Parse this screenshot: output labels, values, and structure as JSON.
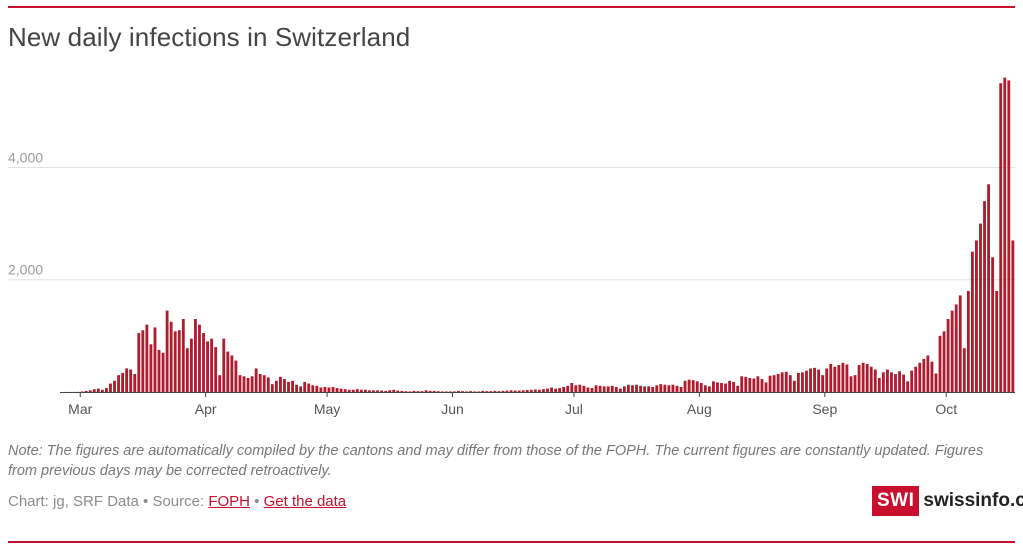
{
  "title": "New daily infections in Switzerland",
  "note": "Note: The figures are automatically compiled by the cantons and may differ from those of the FOPH. The current figures are constantly updated. Figures from previous days may be corrected retroactively.",
  "credits": {
    "prefix": "Chart: jg, SRF Data • Source: ",
    "source_link": "FOPH",
    "separator": " • ",
    "data_link": "Get the data"
  },
  "logo": {
    "badge": "SWI",
    "word": "swissinfo.ch"
  },
  "colors": {
    "bar": "#b01c2e",
    "accent": "#c8102e",
    "grid": "#e3e3e3"
  },
  "chart_data": {
    "type": "bar",
    "title": "New daily infections in Switzerland",
    "start_date": "2020-02-25",
    "ylim": [
      0,
      5700
    ],
    "yticks": [
      2000,
      4000
    ],
    "ytick_labels": [
      "2,000",
      "4,000"
    ],
    "xticks": [
      {
        "label": "Mar",
        "date": "2020-03-01"
      },
      {
        "label": "Apr",
        "date": "2020-04-01"
      },
      {
        "label": "May",
        "date": "2020-05-01"
      },
      {
        "label": "Jun",
        "date": "2020-06-01"
      },
      {
        "label": "Jul",
        "date": "2020-07-01"
      },
      {
        "label": "Aug",
        "date": "2020-08-01"
      },
      {
        "label": "Sep",
        "date": "2020-09-01"
      },
      {
        "label": "Oct",
        "date": "2020-10-01"
      }
    ],
    "grid": "horizontal",
    "values": [
      1,
      1,
      1,
      2,
      3,
      10,
      20,
      30,
      50,
      60,
      40,
      70,
      150,
      200,
      300,
      340,
      420,
      400,
      320,
      1050,
      1100,
      1200,
      850,
      1150,
      750,
      700,
      1450,
      1250,
      1080,
      1100,
      1300,
      780,
      950,
      1300,
      1200,
      1050,
      900,
      950,
      800,
      300,
      950,
      720,
      650,
      560,
      300,
      280,
      250,
      280,
      420,
      320,
      300,
      260,
      140,
      200,
      270,
      230,
      180,
      200,
      130,
      100,
      180,
      150,
      120,
      110,
      80,
      90,
      80,
      90,
      70,
      60,
      50,
      40,
      40,
      50,
      40,
      40,
      30,
      30,
      30,
      25,
      20,
      30,
      40,
      25,
      20,
      15,
      10,
      20,
      15,
      15,
      30,
      20,
      20,
      15,
      10,
      10,
      10,
      10,
      20,
      15,
      10,
      15,
      10,
      10,
      20,
      15,
      15,
      20,
      15,
      20,
      25,
      30,
      25,
      25,
      30,
      35,
      40,
      45,
      40,
      50,
      60,
      80,
      60,
      70,
      90,
      110,
      160,
      120,
      130,
      110,
      80,
      70,
      120,
      110,
      100,
      100,
      110,
      90,
      60,
      100,
      130,
      120,
      130,
      110,
      100,
      100,
      90,
      120,
      140,
      130,
      120,
      130,
      110,
      90,
      200,
      220,
      210,
      190,
      160,
      120,
      100,
      190,
      170,
      160,
      150,
      200,
      180,
      110,
      280,
      270,
      250,
      240,
      280,
      230,
      170,
      290,
      300,
      320,
      350,
      360,
      300,
      200,
      340,
      350,
      380,
      420,
      430,
      400,
      300,
      420,
      500,
      450,
      480,
      520,
      490,
      280,
      300,
      480,
      520,
      500,
      450,
      400,
      250,
      350,
      400,
      350,
      320,
      370,
      310,
      190,
      380,
      450,
      520,
      590,
      650,
      540,
      330,
      1000,
      1080,
      1300,
      1450,
      1560,
      1720,
      780,
      1800,
      2500,
      2700,
      3000,
      3400,
      3700,
      2400,
      1800,
      5500,
      5600,
      5550,
      2700
    ]
  }
}
